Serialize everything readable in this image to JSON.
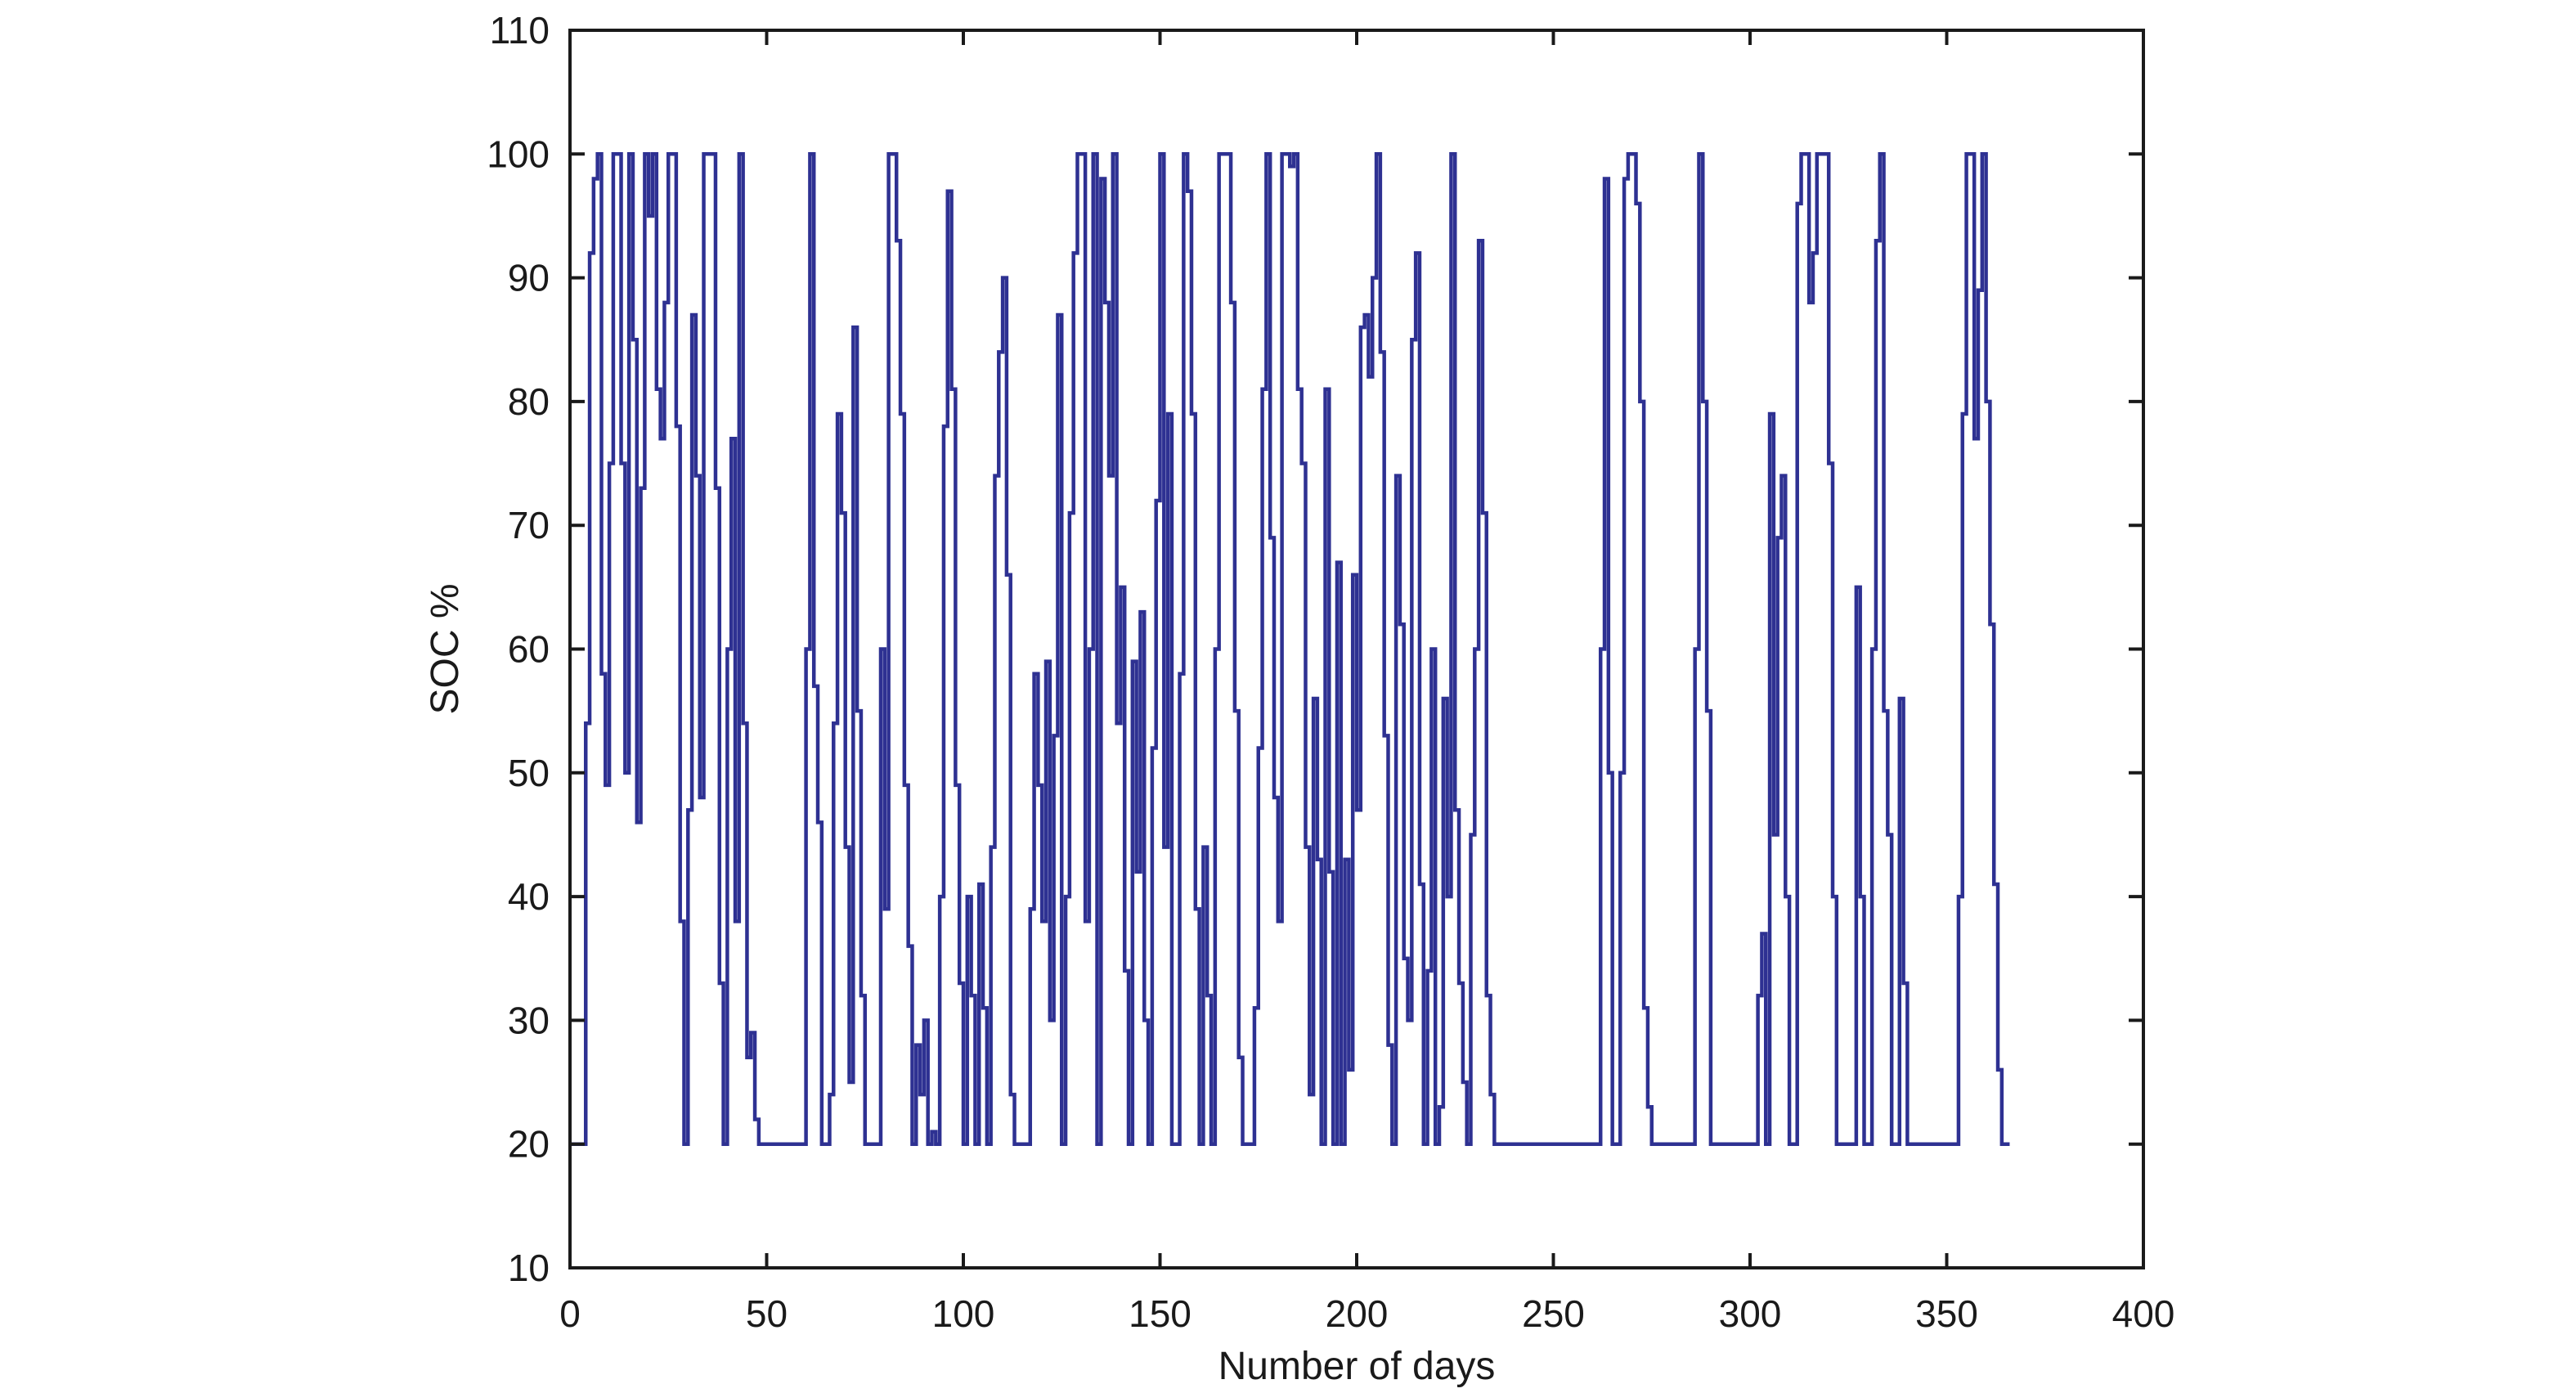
{
  "chart_data": {
    "type": "line",
    "step": true,
    "title": "",
    "xlabel": "Number of days",
    "ylabel": "SOC %",
    "xlim": [
      0,
      400
    ],
    "ylim": [
      10,
      110
    ],
    "xticks": [
      "0",
      "50",
      "100",
      "150",
      "200",
      "250",
      "300",
      "350",
      "400"
    ],
    "yticks": [
      "10",
      "20",
      "30",
      "40",
      "50",
      "60",
      "70",
      "80",
      "90",
      "100",
      "110"
    ],
    "grid": false,
    "legend": "none",
    "line_color": "#2e3192",
    "series": [
      {
        "x_start": 0,
        "x_step": 1,
        "values": [
          20,
          20,
          20,
          20,
          54,
          92,
          98,
          100,
          58,
          49,
          75,
          100,
          100,
          75,
          50,
          100,
          85,
          46,
          73,
          100,
          95,
          100,
          81,
          77,
          88,
          100,
          100,
          78,
          38,
          20,
          47,
          87,
          74,
          48,
          100,
          100,
          100,
          73,
          33,
          20,
          60,
          77,
          38,
          100,
          54,
          27,
          29,
          22,
          20,
          20,
          20,
          20,
          20,
          20,
          20,
          20,
          20,
          20,
          20,
          20,
          60,
          100,
          57,
          46,
          20,
          20,
          24,
          54,
          79,
          71,
          44,
          25,
          86,
          55,
          32,
          20,
          20,
          20,
          20,
          60,
          39,
          100,
          100,
          93,
          79,
          49,
          36,
          20,
          28,
          24,
          30,
          20,
          21,
          20,
          40,
          78,
          97,
          81,
          49,
          33,
          20,
          40,
          32,
          20,
          41,
          31,
          20,
          44,
          74,
          84,
          90,
          66,
          24,
          20,
          20,
          20,
          20,
          39,
          58,
          49,
          38,
          59,
          30,
          53,
          87,
          20,
          40,
          71,
          92,
          100,
          100,
          38,
          60,
          100,
          20,
          98,
          88,
          74,
          100,
          54,
          65,
          34,
          20,
          59,
          42,
          63,
          30,
          20,
          52,
          72,
          100,
          44,
          79,
          20,
          20,
          58,
          100,
          97,
          79,
          39,
          20,
          44,
          32,
          20,
          60,
          100,
          100,
          100,
          88,
          55,
          27,
          20,
          20,
          20,
          31,
          52,
          81,
          100,
          69,
          48,
          38,
          100,
          100,
          99,
          100,
          81,
          75,
          44,
          24,
          56,
          43,
          20,
          81,
          42,
          20,
          67,
          20,
          43,
          26,
          66,
          47,
          86,
          87,
          82,
          90,
          100,
          84,
          53,
          28,
          20,
          74,
          62,
          35,
          30,
          85,
          92,
          41,
          20,
          34,
          60,
          20,
          23,
          56,
          40,
          100,
          47,
          33,
          25,
          20,
          45,
          60,
          93,
          71,
          32,
          24,
          20,
          20,
          20,
          20,
          20,
          20,
          20,
          20,
          20,
          20,
          20,
          20,
          20,
          20,
          20,
          20,
          20,
          20,
          20,
          20,
          20,
          20,
          20,
          20,
          20,
          20,
          20,
          60,
          98,
          50,
          20,
          20,
          50,
          98,
          100,
          100,
          96,
          80,
          31,
          23,
          20,
          20,
          20,
          20,
          20,
          20,
          20,
          20,
          20,
          20,
          20,
          60,
          100,
          80,
          55,
          20,
          20,
          20,
          20,
          20,
          20,
          20,
          20,
          20,
          20,
          20,
          20,
          32,
          37,
          20,
          79,
          45,
          69,
          74,
          40,
          20,
          20,
          96,
          100,
          100,
          88,
          92,
          100,
          100,
          100,
          75,
          40,
          20,
          20,
          20,
          20,
          20,
          65,
          40,
          20,
          20,
          60,
          93,
          100,
          55,
          45,
          20,
          20,
          56,
          33,
          20,
          20,
          20,
          20,
          20,
          20,
          20,
          20,
          20,
          20,
          20,
          20,
          20,
          40,
          79,
          100,
          100,
          77,
          89,
          100,
          80,
          62,
          41,
          26,
          20,
          20
        ]
      }
    ]
  }
}
